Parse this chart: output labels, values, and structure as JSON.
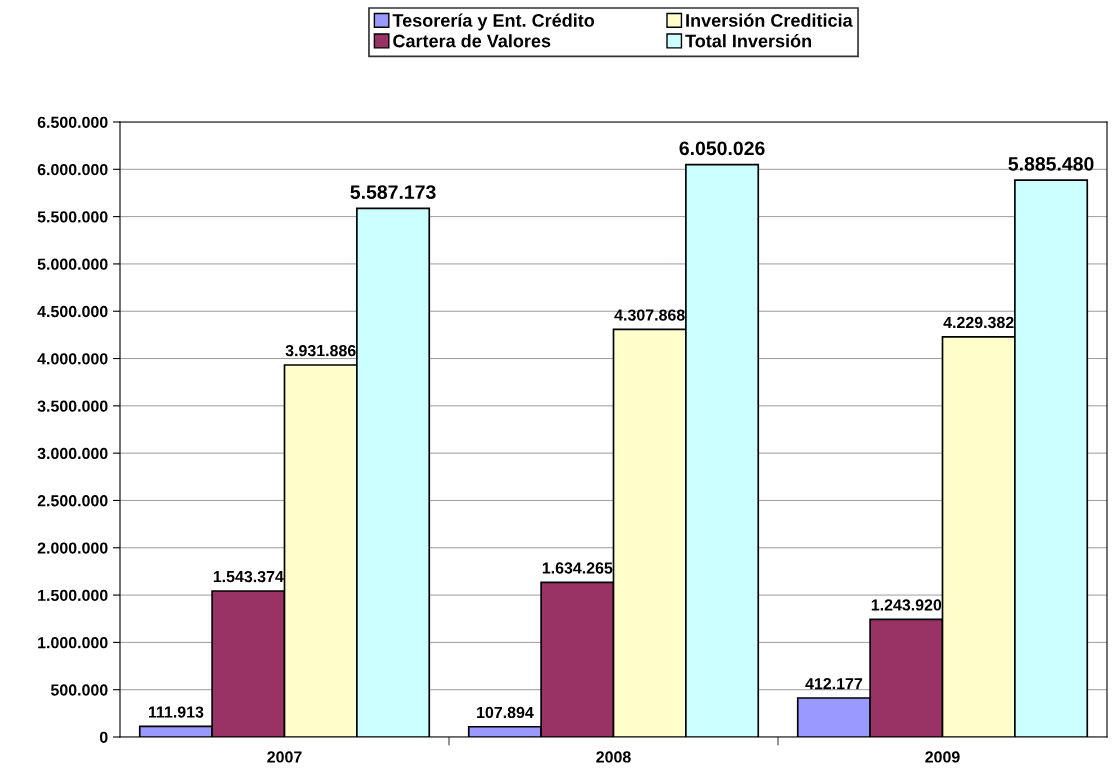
{
  "chart_data": {
    "type": "bar",
    "categories": [
      "2007",
      "2008",
      "2009"
    ],
    "series": [
      {
        "name": "Tesorería y Ent. Crédito",
        "color": "#9999ff",
        "values": [
          111913,
          107894,
          412177
        ],
        "value_labels": [
          "111.913",
          "107.894",
          "412.177"
        ]
      },
      {
        "name": "Cartera de Valores",
        "color": "#993366",
        "values": [
          1543374,
          1634265,
          1243920
        ],
        "value_labels": [
          "1.543.374",
          "1.634.265",
          "1.243.920"
        ]
      },
      {
        "name": "Inversión Crediticia",
        "color": "#ffffcc",
        "values": [
          3931886,
          4307868,
          4229382
        ],
        "value_labels": [
          "3.931.886",
          "4.307.868",
          "4.229.382"
        ]
      },
      {
        "name": "Total Inversión",
        "color": "#ccffff",
        "values": [
          5587173,
          6050026,
          5885480
        ],
        "value_labels": [
          "5.587.173",
          "6.050.026",
          "5.885.480"
        ]
      }
    ],
    "ylim": [
      0,
      6500000
    ],
    "yticks": [
      0,
      {
        "value": 500000,
        "label": "500.000"
      },
      {
        "value": 1000000,
        "label": "1.000.000"
      },
      {
        "value": 1500000,
        "label": "1.500.000"
      },
      {
        "value": 2000000,
        "label": "2.000.000"
      },
      {
        "value": 2500000,
        "label": "2.500.000"
      },
      {
        "value": 3000000,
        "label": "3.000.000"
      },
      {
        "value": 3500000,
        "label": "3.500.000"
      },
      {
        "value": 4000000,
        "label": "4.000.000"
      },
      {
        "value": 4500000,
        "label": "4.500.000"
      },
      {
        "value": 5000000,
        "label": "5.000.000"
      },
      {
        "value": 5500000,
        "label": "5.500.000"
      },
      {
        "value": 6000000,
        "label": "6.000.000"
      },
      {
        "value": 6500000,
        "label": "6.500.000"
      }
    ],
    "grid": "y",
    "legend": "top"
  }
}
